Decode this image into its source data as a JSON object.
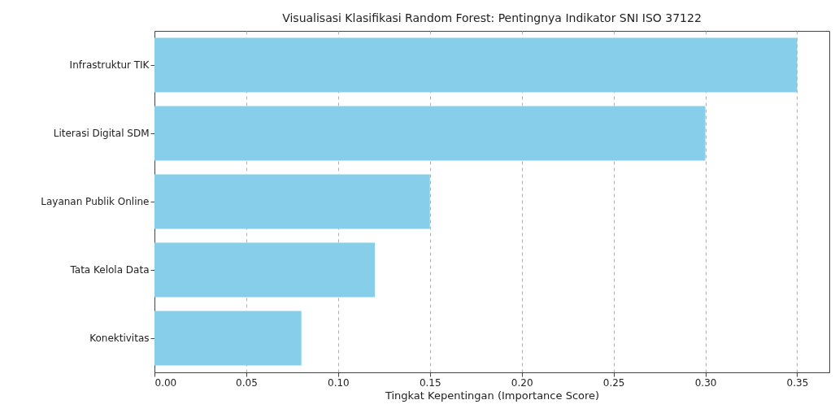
{
  "chart_data": {
    "type": "bar",
    "orientation": "horizontal",
    "title": "Visualisasi Klasifikasi Random Forest: Pentingnya Indikator SNI ISO 37122",
    "xlabel": "Tingkat Kepentingan (Importance Score)",
    "categories": [
      "Infrastruktur TIK",
      "Literasi Digital SDM",
      "Layanan Publik Online",
      "Tata Kelola Data",
      "Konektivitas"
    ],
    "values": [
      0.35,
      0.3,
      0.15,
      0.12,
      0.08
    ],
    "color": "#87ceeb",
    "xlim": [
      0,
      0.3675
    ],
    "xticks": [
      {
        "value": 0,
        "label": "0.00"
      },
      0.05,
      {
        "value": 0.1,
        "label": "0.10"
      },
      0.15,
      {
        "value": 0.2,
        "label": "0.20"
      },
      0.25,
      {
        "value": 0.3,
        "label": "0.30"
      },
      0.35
    ],
    "grid": "x"
  }
}
